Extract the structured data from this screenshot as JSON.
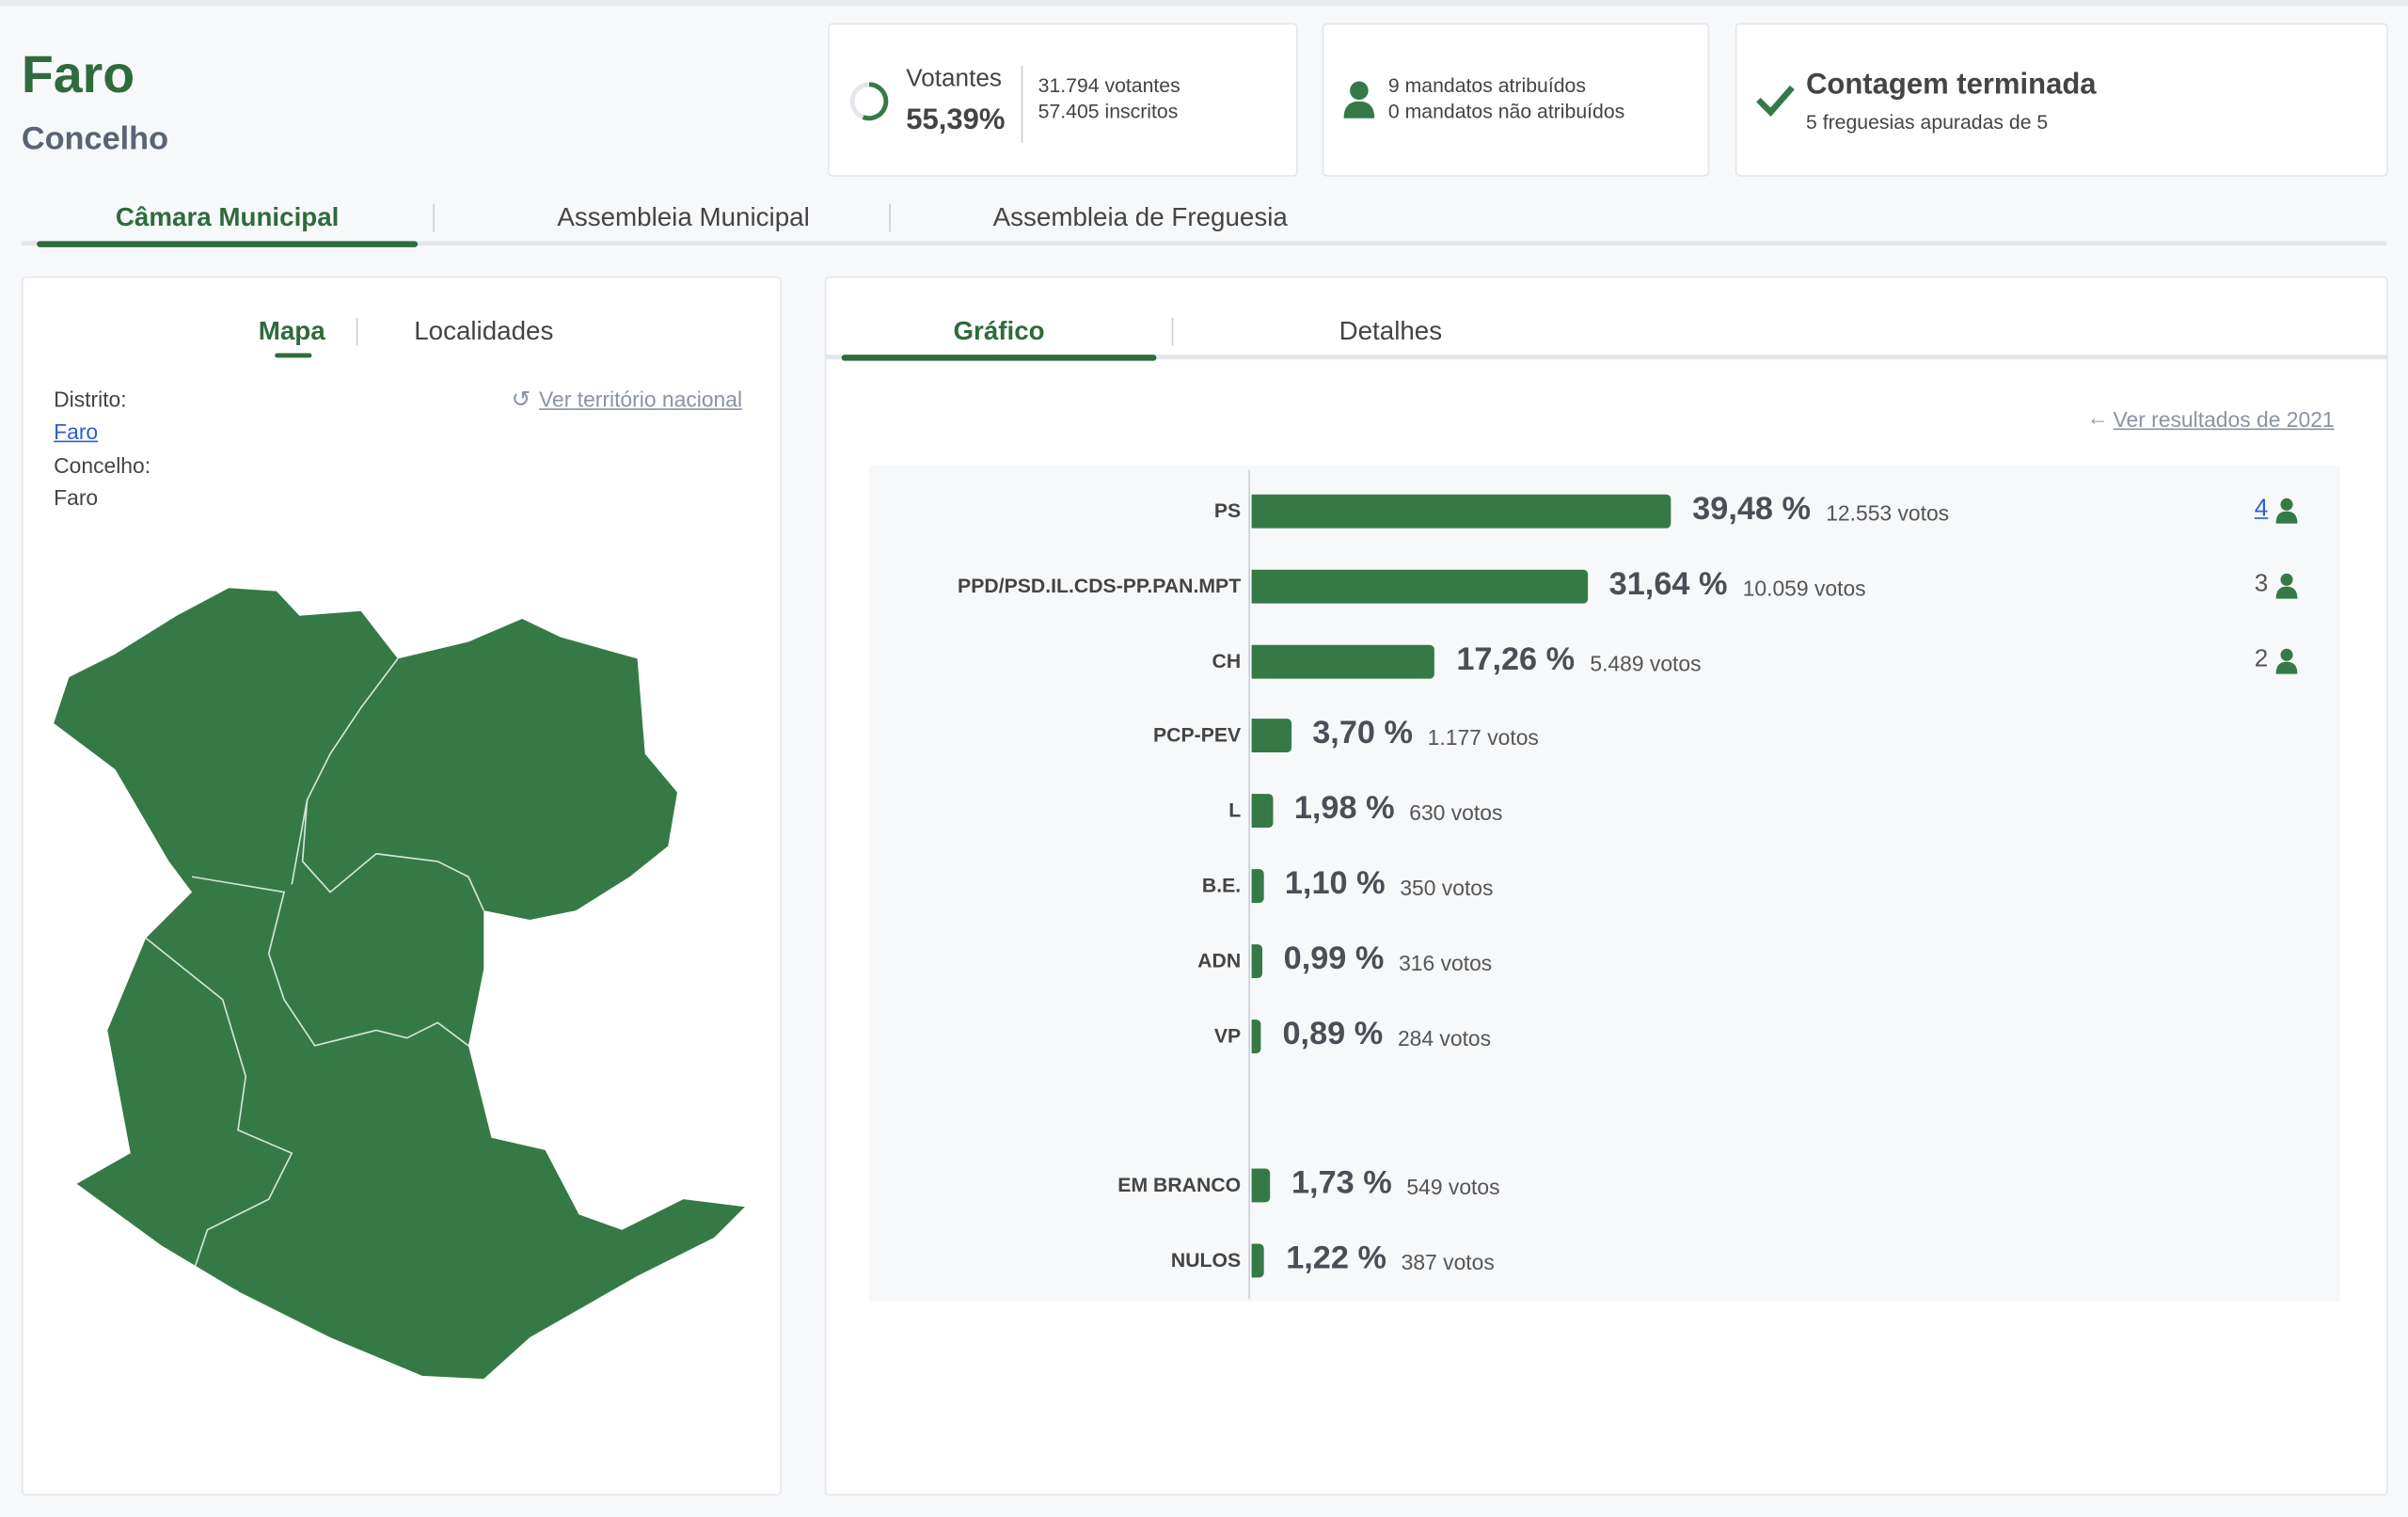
{
  "header": {
    "title": "Faro",
    "subtitle": "Concelho"
  },
  "stats": {
    "voters_label": "Votantes",
    "voters_percent": "55,39%",
    "voters": "31.794 votantes",
    "registered": "57.405 inscritos",
    "seats_assigned": "9 mandatos atribuídos",
    "seats_unassigned": "0 mandatos não atribuídos",
    "status": "Contagem terminada",
    "parishes": "5 freguesias apuradas de 5"
  },
  "tabs": [
    "Câmara Municipal",
    "Assembleia Municipal",
    "Assembleia de Freguesia"
  ],
  "map_panel": {
    "tabs": [
      "Mapa",
      "Localidades"
    ],
    "district_label": "Distrito:",
    "district": "Faro",
    "municipality_label": "Concelho:",
    "municipality": "Faro",
    "national_link": "Ver território nacional"
  },
  "results_panel": {
    "tabs": [
      "Gráfico",
      "Detalhes"
    ],
    "previous_link": "Ver resultados de 2021",
    "parties": [
      {
        "name": "PS",
        "percent": 39.48,
        "percent_label": "39,48 %",
        "votes": "12.553 votos",
        "seats": 4
      },
      {
        "name": "PPD/PSD.IL.CDS-PP.PAN.MPT",
        "percent": 31.64,
        "percent_label": "31,64 %",
        "votes": "10.059 votos",
        "seats": 3
      },
      {
        "name": "CH",
        "percent": 17.26,
        "percent_label": "17,26 %",
        "votes": "5.489 votos",
        "seats": 2
      },
      {
        "name": "PCP-PEV",
        "percent": 3.7,
        "percent_label": "3,70 %",
        "votes": "1.177 votos"
      },
      {
        "name": "L",
        "percent": 1.98,
        "percent_label": "1,98 %",
        "votes": "630 votos"
      },
      {
        "name": "B.E.",
        "percent": 1.1,
        "percent_label": "1,10 %",
        "votes": "350 votos"
      },
      {
        "name": "ADN",
        "percent": 0.99,
        "percent_label": "0,99 %",
        "votes": "316 votos"
      },
      {
        "name": "VP",
        "percent": 0.89,
        "percent_label": "0,89 %",
        "votes": "284 votos"
      }
    ],
    "other": [
      {
        "name": "EM BRANCO",
        "percent": 1.73,
        "percent_label": "1,73 %",
        "votes": "549 votos"
      },
      {
        "name": "NULOS",
        "percent": 1.22,
        "percent_label": "1,22 %",
        "votes": "387 votos"
      }
    ]
  }
}
